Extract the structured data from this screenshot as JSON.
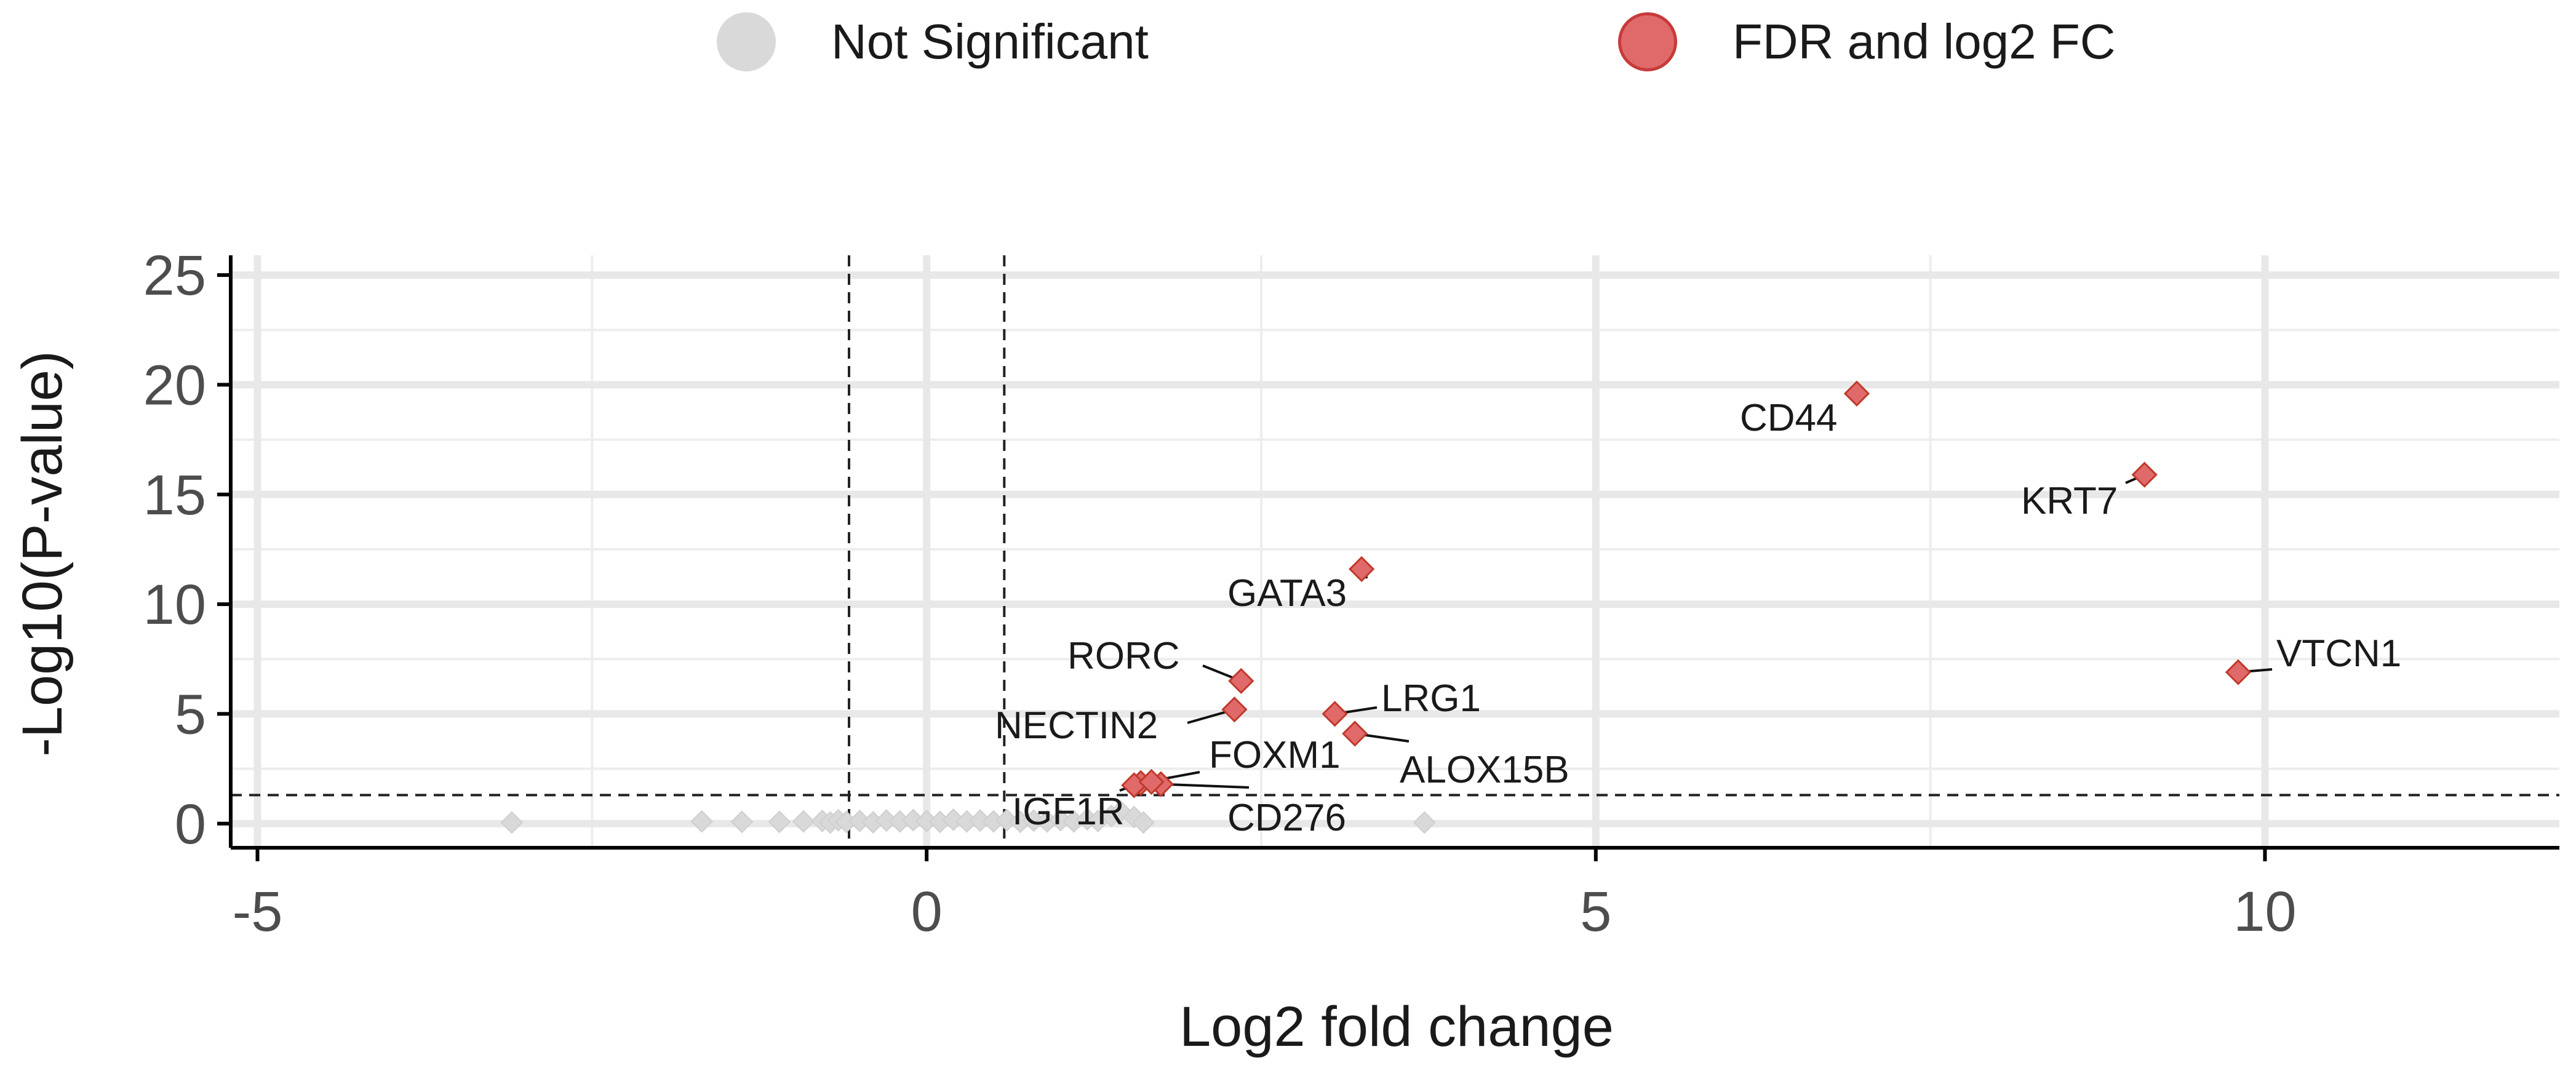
{
  "legend": [
    {
      "label": "Not Significant",
      "color": "#d9d9d9"
    },
    {
      "label": "FDR and log2 FC",
      "color": "#e06a6a"
    }
  ],
  "chart_data": {
    "type": "scatter",
    "title": "",
    "xlabel": "Log2 fold change",
    "ylabel": "-Log10(P-value)",
    "xlim": [
      -5.2,
      12.2
    ],
    "ylim": [
      -1.1,
      25.9
    ],
    "x_ticks": [
      -5,
      0,
      5,
      10
    ],
    "y_ticks": [
      0,
      5,
      10,
      15,
      20,
      25
    ],
    "grid": true,
    "legend_position": "top",
    "thresholds": {
      "log2fc": [
        -0.58,
        0.58
      ],
      "neg_log10_p": 1.3
    },
    "colors": {
      "not_significant": "#d9d9d9",
      "significant": "#e06a6a",
      "significant_edge": "#c0392b"
    },
    "series": [
      {
        "name": "Not Significant",
        "points": [
          {
            "x": -3.1,
            "y": 0.05
          },
          {
            "x": -1.68,
            "y": 0.1
          },
          {
            "x": -1.38,
            "y": 0.08
          },
          {
            "x": -1.1,
            "y": 0.08
          },
          {
            "x": -0.92,
            "y": 0.1
          },
          {
            "x": -0.78,
            "y": 0.12
          },
          {
            "x": -0.72,
            "y": 0.05
          },
          {
            "x": -0.66,
            "y": 0.15
          },
          {
            "x": -0.6,
            "y": 0.08
          },
          {
            "x": -0.5,
            "y": 0.12
          },
          {
            "x": -0.4,
            "y": 0.06
          },
          {
            "x": -0.3,
            "y": 0.14
          },
          {
            "x": -0.2,
            "y": 0.1
          },
          {
            "x": -0.1,
            "y": 0.16
          },
          {
            "x": 0.0,
            "y": 0.12
          },
          {
            "x": 0.1,
            "y": 0.08
          },
          {
            "x": 0.2,
            "y": 0.18
          },
          {
            "x": 0.3,
            "y": 0.1
          },
          {
            "x": 0.4,
            "y": 0.14
          },
          {
            "x": 0.5,
            "y": 0.1
          },
          {
            "x": 0.6,
            "y": 0.16
          },
          {
            "x": 0.7,
            "y": 0.08
          },
          {
            "x": 0.8,
            "y": 0.14
          },
          {
            "x": 0.9,
            "y": 0.1
          },
          {
            "x": 1.0,
            "y": 0.16
          },
          {
            "x": 1.1,
            "y": 0.1
          },
          {
            "x": 1.2,
            "y": 0.2
          },
          {
            "x": 1.28,
            "y": 0.12
          },
          {
            "x": 1.38,
            "y": 0.35
          },
          {
            "x": 1.45,
            "y": 0.55
          },
          {
            "x": 1.55,
            "y": 0.3
          },
          {
            "x": 1.62,
            "y": 0.05
          },
          {
            "x": 3.72,
            "y": 0.05
          }
        ]
      },
      {
        "name": "FDR and log2 FC",
        "points": [
          {
            "x": 6.95,
            "y": 19.6,
            "label": "CD44"
          },
          {
            "x": 9.1,
            "y": 15.9,
            "label": "KRT7"
          },
          {
            "x": 3.25,
            "y": 11.6,
            "label": "GATA3"
          },
          {
            "x": 9.8,
            "y": 6.9,
            "label": "VTCN1"
          },
          {
            "x": 2.35,
            "y": 6.5,
            "label": "RORC"
          },
          {
            "x": 3.05,
            "y": 5.0,
            "label": "LRG1"
          },
          {
            "x": 2.3,
            "y": 5.2,
            "label": "NECTIN2"
          },
          {
            "x": 3.2,
            "y": 4.1,
            "label": "ALOX15B"
          },
          {
            "x": 1.6,
            "y": 1.85,
            "label": "FOXM1"
          },
          {
            "x": 1.75,
            "y": 1.8,
            "label": "CD276"
          },
          {
            "x": 1.55,
            "y": 1.75,
            "label": "IGF1R"
          },
          {
            "x": 1.68,
            "y": 1.9
          }
        ]
      }
    ]
  }
}
